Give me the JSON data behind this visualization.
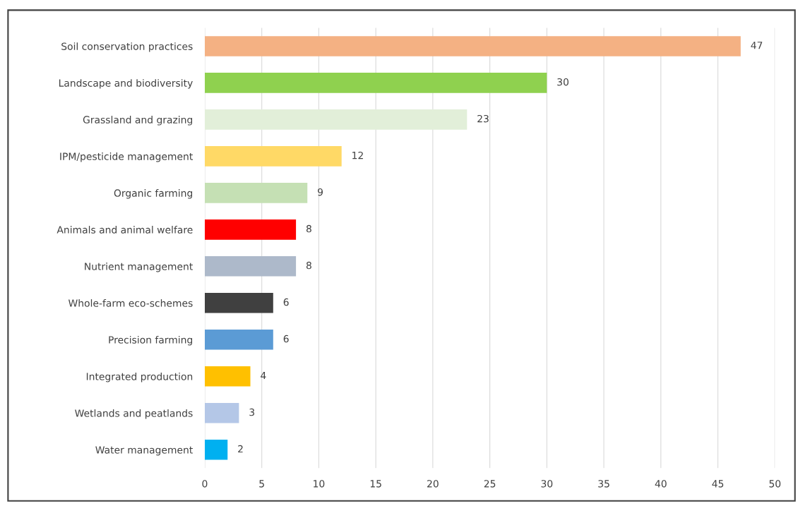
{
  "chart_data": {
    "type": "bar",
    "orientation": "horizontal",
    "categories": [
      "Soil conservation practices",
      "Landscape and biodiversity",
      "Grassland and grazing",
      "IPM/pesticide management",
      "Organic farming",
      "Animals and animal welfare",
      "Nutrient management",
      "Whole-farm eco-schemes",
      "Precision farming",
      "Integrated production",
      "Wetlands and peatlands",
      "Water management"
    ],
    "values": [
      47,
      30,
      23,
      12,
      9,
      8,
      8,
      6,
      6,
      4,
      3,
      2
    ],
    "colors": [
      "#f4b183",
      "#8fd14f",
      "#e2efd9",
      "#ffd966",
      "#c5e0b4",
      "#ff0000",
      "#adb9ca",
      "#404040",
      "#5b9bd5",
      "#ffc000",
      "#b4c7e7",
      "#00b0f0"
    ],
    "xlim": [
      0,
      50
    ],
    "xticks": [
      0,
      5,
      10,
      15,
      20,
      25,
      30,
      35,
      40,
      45,
      50
    ],
    "grid": "x",
    "data_labels": true
  }
}
